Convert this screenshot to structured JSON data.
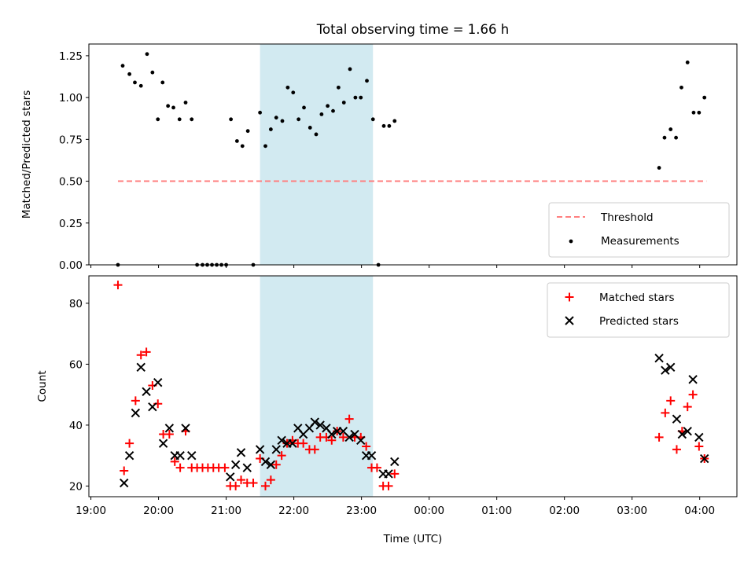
{
  "figure_title": "Total observing time = 1.66 h",
  "chart_data": [
    {
      "type": "scatter",
      "title": "Total observing time = 1.66 h",
      "xlabel": "",
      "ylabel": "Matched/Predicted stars",
      "ylim": [
        0,
        1.32
      ],
      "yticks": [
        "0.00",
        "0.25",
        "0.50",
        "0.75",
        "1.00",
        "1.25"
      ],
      "xlim_hours": [
        18.97,
        28.55
      ],
      "shaded_interval_hours": [
        21.5,
        23.17
      ],
      "shaded_color": "#add8e6",
      "legend_placement": "lower-right",
      "threshold": {
        "name": "Threshold",
        "value": 0.5,
        "x_start_hours": 19.4,
        "x_end_hours": 28.1,
        "color": "#ff7f7f"
      },
      "series": [
        {
          "name": "Measurements",
          "color": "#000000",
          "marker": "dot",
          "points": [
            [
              19.4,
              0.0
            ],
            [
              19.47,
              1.19
            ],
            [
              19.57,
              1.14
            ],
            [
              19.65,
              1.09
            ],
            [
              19.74,
              1.07
            ],
            [
              19.83,
              1.26
            ],
            [
              19.91,
              1.15
            ],
            [
              19.99,
              0.87
            ],
            [
              20.06,
              1.09
            ],
            [
              20.14,
              0.95
            ],
            [
              20.22,
              0.94
            ],
            [
              20.31,
              0.87
            ],
            [
              20.4,
              0.97
            ],
            [
              20.49,
              0.87
            ],
            [
              20.57,
              0.0
            ],
            [
              20.65,
              0.0
            ],
            [
              20.72,
              0.0
            ],
            [
              20.79,
              0.0
            ],
            [
              20.86,
              0.0
            ],
            [
              20.93,
              0.0
            ],
            [
              21.0,
              0.0
            ],
            [
              21.07,
              0.87
            ],
            [
              21.16,
              0.74
            ],
            [
              21.24,
              0.71
            ],
            [
              21.32,
              0.8
            ],
            [
              21.4,
              0.0
            ],
            [
              21.5,
              0.91
            ],
            [
              21.58,
              0.71
            ],
            [
              21.66,
              0.81
            ],
            [
              21.74,
              0.88
            ],
            [
              21.83,
              0.86
            ],
            [
              21.91,
              1.06
            ],
            [
              21.99,
              1.03
            ],
            [
              22.07,
              0.87
            ],
            [
              22.15,
              0.94
            ],
            [
              22.24,
              0.82
            ],
            [
              22.33,
              0.78
            ],
            [
              22.41,
              0.9
            ],
            [
              22.5,
              0.95
            ],
            [
              22.58,
              0.92
            ],
            [
              22.66,
              1.06
            ],
            [
              22.74,
              0.97
            ],
            [
              22.83,
              1.17
            ],
            [
              22.91,
              1.0
            ],
            [
              22.99,
              1.0
            ],
            [
              23.08,
              1.1
            ],
            [
              23.17,
              0.87
            ],
            [
              23.25,
              0.0
            ],
            [
              23.33,
              0.83
            ],
            [
              23.41,
              0.83
            ],
            [
              23.49,
              0.86
            ],
            [
              27.4,
              0.58
            ],
            [
              27.48,
              0.76
            ],
            [
              27.57,
              0.81
            ],
            [
              27.65,
              0.76
            ],
            [
              27.73,
              1.06
            ],
            [
              27.82,
              1.21
            ],
            [
              27.91,
              0.91
            ],
            [
              27.99,
              0.91
            ],
            [
              28.07,
              1.0
            ]
          ]
        }
      ]
    },
    {
      "type": "scatter",
      "title": "",
      "xlabel": "Time (UTC)",
      "ylabel": "Count",
      "ylim": [
        16.5,
        89
      ],
      "yticks": [
        "20",
        "40",
        "60",
        "80"
      ],
      "xlim_hours": [
        18.97,
        28.55
      ],
      "xticks": [
        "19:00",
        "20:00",
        "21:00",
        "22:00",
        "23:00",
        "00:00",
        "01:00",
        "02:00",
        "03:00",
        "04:00"
      ],
      "shaded_interval_hours": [
        21.5,
        23.17
      ],
      "shaded_color": "#add8e6",
      "legend_placement": "upper-right",
      "series": [
        {
          "name": "Matched stars",
          "color": "#ff0000",
          "marker": "plus",
          "points": [
            [
              19.4,
              86
            ],
            [
              19.49,
              25
            ],
            [
              19.57,
              34
            ],
            [
              19.66,
              48
            ],
            [
              19.74,
              63
            ],
            [
              19.82,
              64
            ],
            [
              19.91,
              53
            ],
            [
              19.99,
              47
            ],
            [
              20.07,
              37
            ],
            [
              20.16,
              37
            ],
            [
              20.24,
              28
            ],
            [
              20.32,
              26
            ],
            [
              20.4,
              38
            ],
            [
              20.49,
              26
            ],
            [
              20.57,
              26
            ],
            [
              20.65,
              26
            ],
            [
              20.73,
              26
            ],
            [
              20.81,
              26
            ],
            [
              20.89,
              26
            ],
            [
              20.98,
              26
            ],
            [
              21.06,
              20
            ],
            [
              21.14,
              20
            ],
            [
              21.22,
              22
            ],
            [
              21.31,
              21
            ],
            [
              21.4,
              21
            ],
            [
              21.5,
              29
            ],
            [
              21.58,
              20
            ],
            [
              21.66,
              22
            ],
            [
              21.74,
              27
            ],
            [
              21.82,
              30
            ],
            [
              21.9,
              34
            ],
            [
              21.98,
              35
            ],
            [
              22.06,
              34
            ],
            [
              22.14,
              34
            ],
            [
              22.23,
              32
            ],
            [
              22.31,
              32
            ],
            [
              22.39,
              36
            ],
            [
              22.48,
              36
            ],
            [
              22.56,
              35
            ],
            [
              22.64,
              38
            ],
            [
              22.73,
              36
            ],
            [
              22.82,
              42
            ],
            [
              22.9,
              36
            ],
            [
              22.99,
              36
            ],
            [
              23.07,
              33
            ],
            [
              23.15,
              26
            ],
            [
              23.23,
              26
            ],
            [
              23.32,
              20
            ],
            [
              23.4,
              20
            ],
            [
              23.49,
              24
            ],
            [
              27.4,
              36
            ],
            [
              27.49,
              44
            ],
            [
              27.57,
              48
            ],
            [
              27.66,
              32
            ],
            [
              27.74,
              38
            ],
            [
              27.82,
              46
            ],
            [
              27.9,
              50
            ],
            [
              27.99,
              33
            ],
            [
              28.07,
              29
            ]
          ]
        },
        {
          "name": "Predicted stars",
          "color": "#000000",
          "marker": "x",
          "points": [
            [
              19.49,
              21
            ],
            [
              19.57,
              30
            ],
            [
              19.66,
              44
            ],
            [
              19.74,
              59
            ],
            [
              19.82,
              51
            ],
            [
              19.91,
              46
            ],
            [
              19.99,
              54
            ],
            [
              20.07,
              34
            ],
            [
              20.16,
              39
            ],
            [
              20.24,
              30
            ],
            [
              20.32,
              30
            ],
            [
              20.4,
              39
            ],
            [
              20.49,
              30
            ],
            [
              21.06,
              23
            ],
            [
              21.14,
              27
            ],
            [
              21.22,
              31
            ],
            [
              21.31,
              26
            ],
            [
              21.5,
              32
            ],
            [
              21.58,
              28
            ],
            [
              21.66,
              27
            ],
            [
              21.74,
              32
            ],
            [
              21.82,
              35
            ],
            [
              21.9,
              34
            ],
            [
              21.98,
              34
            ],
            [
              22.06,
              39
            ],
            [
              22.14,
              37
            ],
            [
              22.23,
              39
            ],
            [
              22.31,
              41
            ],
            [
              22.39,
              40
            ],
            [
              22.48,
              39
            ],
            [
              22.56,
              37
            ],
            [
              22.64,
              38
            ],
            [
              22.73,
              38
            ],
            [
              22.82,
              36
            ],
            [
              22.9,
              37
            ],
            [
              22.99,
              35
            ],
            [
              23.07,
              30
            ],
            [
              23.15,
              30
            ],
            [
              23.32,
              24
            ],
            [
              23.4,
              24
            ],
            [
              23.49,
              28
            ],
            [
              27.4,
              62
            ],
            [
              27.49,
              58
            ],
            [
              27.57,
              59
            ],
            [
              27.66,
              42
            ],
            [
              27.74,
              37
            ],
            [
              27.82,
              38
            ],
            [
              27.9,
              55
            ],
            [
              27.99,
              36
            ],
            [
              28.07,
              29
            ]
          ]
        }
      ]
    }
  ]
}
